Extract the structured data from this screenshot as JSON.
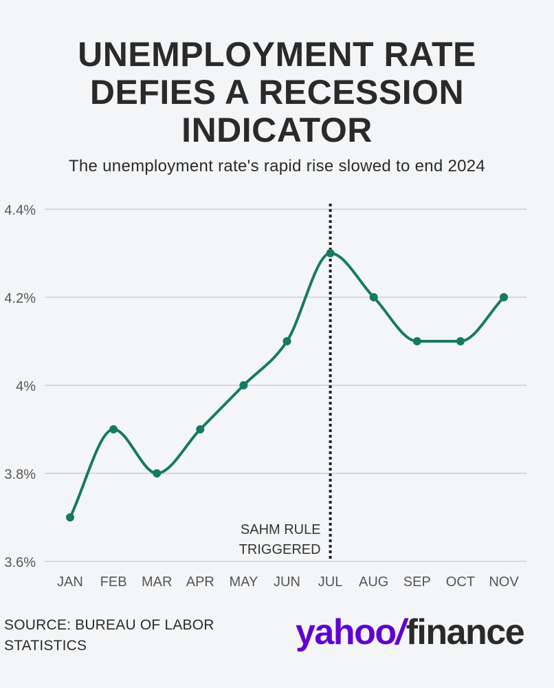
{
  "headline": {
    "lines": [
      "UNEMPLOYMENT RATE",
      "DEFIES A RECESSION",
      "INDICATOR"
    ],
    "subtitle": "The unemployment rate's rapid rise slowed to end 2024"
  },
  "chart_data": {
    "type": "line",
    "title": "UNEMPLOYMENT RATE DEFIES A RECESSION INDICATOR",
    "subtitle": "The unemployment rate's rapid rise slowed to end 2024",
    "categories": [
      "JAN",
      "FEB",
      "MAR",
      "APR",
      "MAY",
      "JUN",
      "JUL",
      "AUG",
      "SEP",
      "OCT",
      "NOV"
    ],
    "series": [
      {
        "name": "Unemployment rate",
        "values": [
          3.7,
          3.9,
          3.8,
          3.9,
          4.0,
          4.1,
          4.3,
          4.2,
          4.1,
          4.1,
          4.2
        ]
      }
    ],
    "xlabel": "",
    "ylabel": "",
    "ylim": [
      3.6,
      4.4
    ],
    "yticks": [
      3.6,
      3.8,
      4.0,
      4.2,
      4.4
    ],
    "ytick_labels": [
      "3.6%",
      "3.8%",
      "4%",
      "4.2%",
      "4.4%"
    ],
    "grid": true,
    "annotation": {
      "category": "JUL",
      "lines": [
        "SAHM RULE",
        "TRIGGERED"
      ]
    },
    "colors": {
      "line": "#157a62",
      "grid": "#d6d8dc",
      "text": "#555555",
      "marker_line": "#222222"
    }
  },
  "footer": {
    "source_lines": [
      "SOURCE: BUREAU OF LABOR",
      "STATISTICS"
    ],
    "brand": {
      "part1": "yahoo",
      "slash": "/",
      "part2": "finance"
    }
  }
}
